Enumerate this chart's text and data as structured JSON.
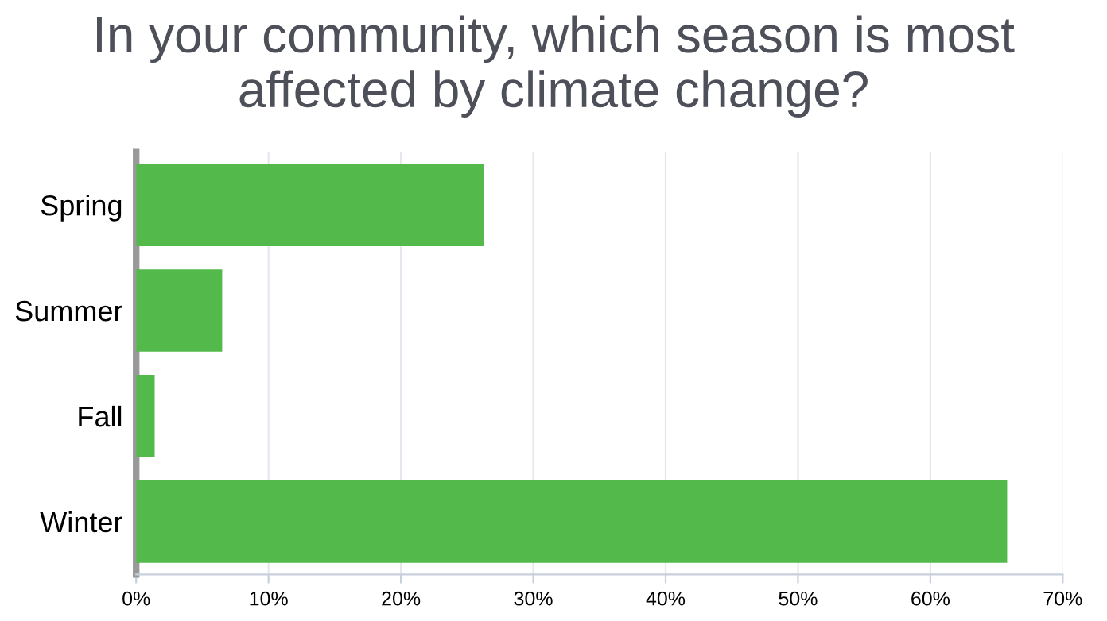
{
  "chart_data": {
    "type": "bar",
    "orientation": "horizontal",
    "title": "In your community, which season is most affected by climate change?",
    "categories": [
      "Spring",
      "Summer",
      "Fall",
      "Winter"
    ],
    "values": [
      26.3,
      6.5,
      1.4,
      65.8
    ],
    "color": "#52b94a",
    "xlim": [
      0,
      70
    ],
    "xticks": [
      {
        "value": 0,
        "label": "0%"
      },
      {
        "value": 10,
        "label": "10%"
      },
      {
        "value": 20,
        "label": "20%"
      },
      {
        "value": 30,
        "label": "30%"
      },
      {
        "value": 40,
        "label": "40%"
      },
      {
        "value": 50,
        "label": "50%"
      },
      {
        "value": 60,
        "label": "60%"
      },
      {
        "value": 70,
        "label": "70%"
      }
    ],
    "grid": "x",
    "legend": false
  }
}
